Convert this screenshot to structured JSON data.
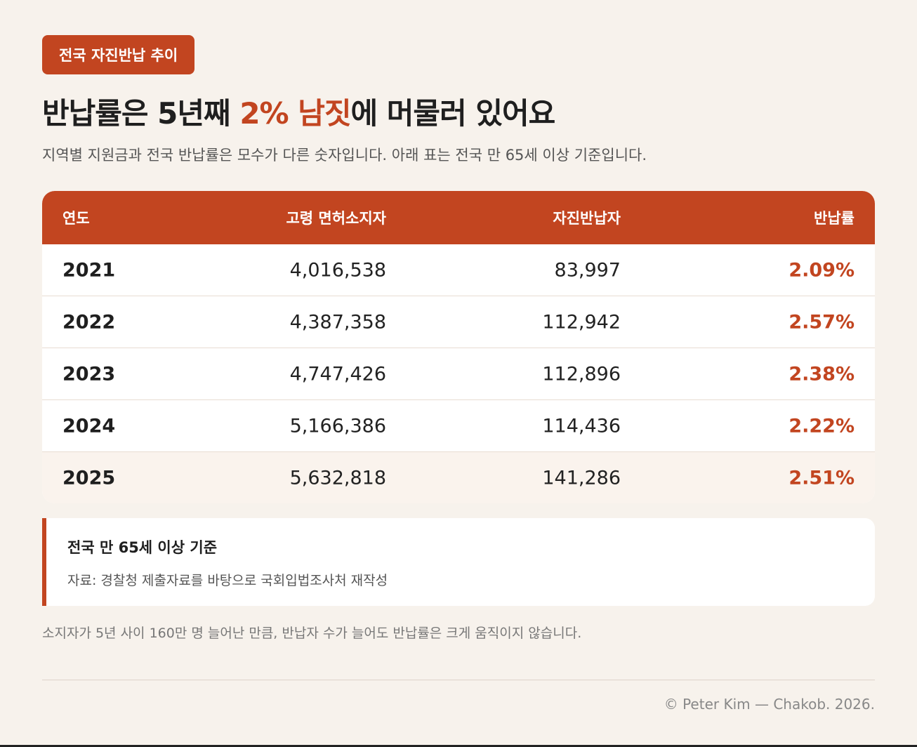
{
  "badge": "전국 자진반납 추이",
  "title": {
    "prefix": "반납률은 5년째 ",
    "highlight": "2% 남짓",
    "suffix": "에 머물러 있어요"
  },
  "subtitle": "지역별 지원금과 전국 반납률은 모수가 다른 숫자입니다. 아래 표는 전국 만 65세 이상 기준입니다.",
  "table": {
    "headers": [
      "연도",
      "고령 면허소지자",
      "자진반납자",
      "반납률"
    ],
    "rows": [
      [
        "2021",
        "4,016,538",
        "83,997",
        "2.09%"
      ],
      [
        "2022",
        "4,387,358",
        "112,942",
        "2.57%"
      ],
      [
        "2023",
        "4,747,426",
        "112,896",
        "2.38%"
      ],
      [
        "2024",
        "5,166,386",
        "114,436",
        "2.22%"
      ],
      [
        "2025",
        "5,632,818",
        "141,286",
        "2.51%"
      ]
    ]
  },
  "note": {
    "title": "전국 만 65세 이상 기준",
    "source": "자료: 경찰청 제출자료를 바탕으로 국회입법조사처 재작성"
  },
  "footnote": "소지자가 5년 사이 160만 명 늘어난 만큼, 반납자 수가 늘어도 반납률은 크게 움직이지 않습니다.",
  "copyright": "© Peter Kim — Chakob. 2026.",
  "colors": {
    "accent": "#c24520",
    "background": "#f7f2ec"
  }
}
